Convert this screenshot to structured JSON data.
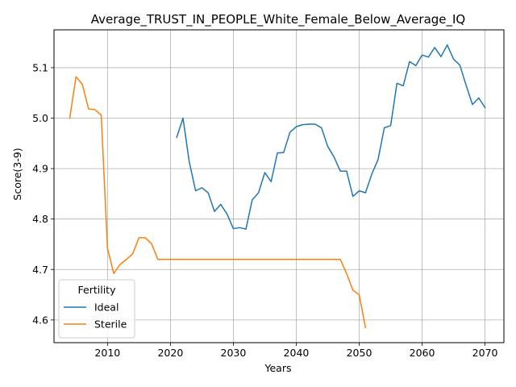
{
  "chart_data": {
    "type": "line",
    "title": "Average_TRUST_IN_PEOPLE_White_Female_Below_Average_IQ",
    "xlabel": "Years",
    "ylabel": "Score(3-9)",
    "xlim": [
      2001.5,
      2073
    ],
    "ylim": [
      4.555,
      5.175
    ],
    "xticks": [
      2010,
      2020,
      2030,
      2040,
      2050,
      2060,
      2070
    ],
    "yticks": [
      4.6,
      4.7,
      4.8,
      4.9,
      5.0,
      5.1
    ],
    "ytick_labels": [
      "4.6",
      "4.7",
      "4.8",
      "4.9",
      "5.0",
      "5.1"
    ],
    "grid": true,
    "legend": {
      "title": "Fertility",
      "position": "lower-left"
    },
    "series": [
      {
        "name": "Ideal",
        "color": "#1f77b4",
        "x": [
          2021,
          2022,
          2023,
          2024,
          2025,
          2026,
          2027,
          2028,
          2029,
          2030,
          2031,
          2032,
          2033,
          2034,
          2035,
          2036,
          2037,
          2038,
          2039,
          2040,
          2041,
          2042,
          2043,
          2044,
          2045,
          2046,
          2047,
          2048,
          2049,
          2050,
          2051,
          2052,
          2053,
          2054,
          2055,
          2056,
          2057,
          2058,
          2059,
          2060,
          2061,
          2062,
          2063,
          2064,
          2065,
          2066,
          2067,
          2068,
          2069,
          2070
        ],
        "y": [
          4.962,
          5.0,
          4.913,
          4.856,
          4.862,
          4.852,
          4.815,
          4.829,
          4.81,
          4.781,
          4.783,
          4.78,
          4.838,
          4.852,
          4.892,
          4.874,
          4.931,
          4.932,
          4.972,
          4.983,
          4.987,
          4.988,
          4.988,
          4.981,
          4.944,
          4.923,
          4.895,
          4.895,
          4.845,
          4.856,
          4.852,
          4.889,
          4.918,
          4.981,
          4.985,
          5.069,
          5.064,
          5.112,
          5.104,
          5.125,
          5.121,
          5.14,
          5.122,
          5.145,
          5.117,
          5.105,
          5.065,
          5.027,
          5.04,
          5.021
        ]
      },
      {
        "name": "Sterile",
        "color": "#ff7f0e",
        "x": [
          2004,
          2005,
          2006,
          2007,
          2008,
          2009,
          2010,
          2011,
          2012,
          2013,
          2014,
          2015,
          2016,
          2017,
          2018,
          2019,
          2020,
          2021,
          2022,
          2023,
          2024,
          2025,
          2026,
          2027,
          2028,
          2029,
          2030,
          2031,
          2032,
          2033,
          2034,
          2035,
          2036,
          2037,
          2038,
          2039,
          2040,
          2041,
          2042,
          2043,
          2044,
          2045,
          2046,
          2047,
          2048,
          2049,
          2050,
          2051
        ],
        "y": [
          5.0,
          5.082,
          5.067,
          5.018,
          5.017,
          5.006,
          4.742,
          4.692,
          4.71,
          4.72,
          4.731,
          4.763,
          4.763,
          4.751,
          4.72,
          4.72,
          4.72,
          4.72,
          4.72,
          4.72,
          4.72,
          4.72,
          4.72,
          4.72,
          4.72,
          4.72,
          4.72,
          4.72,
          4.72,
          4.72,
          4.72,
          4.72,
          4.72,
          4.72,
          4.72,
          4.72,
          4.72,
          4.72,
          4.72,
          4.72,
          4.72,
          4.72,
          4.72,
          4.72,
          4.692,
          4.659,
          4.65,
          4.585
        ]
      }
    ]
  }
}
